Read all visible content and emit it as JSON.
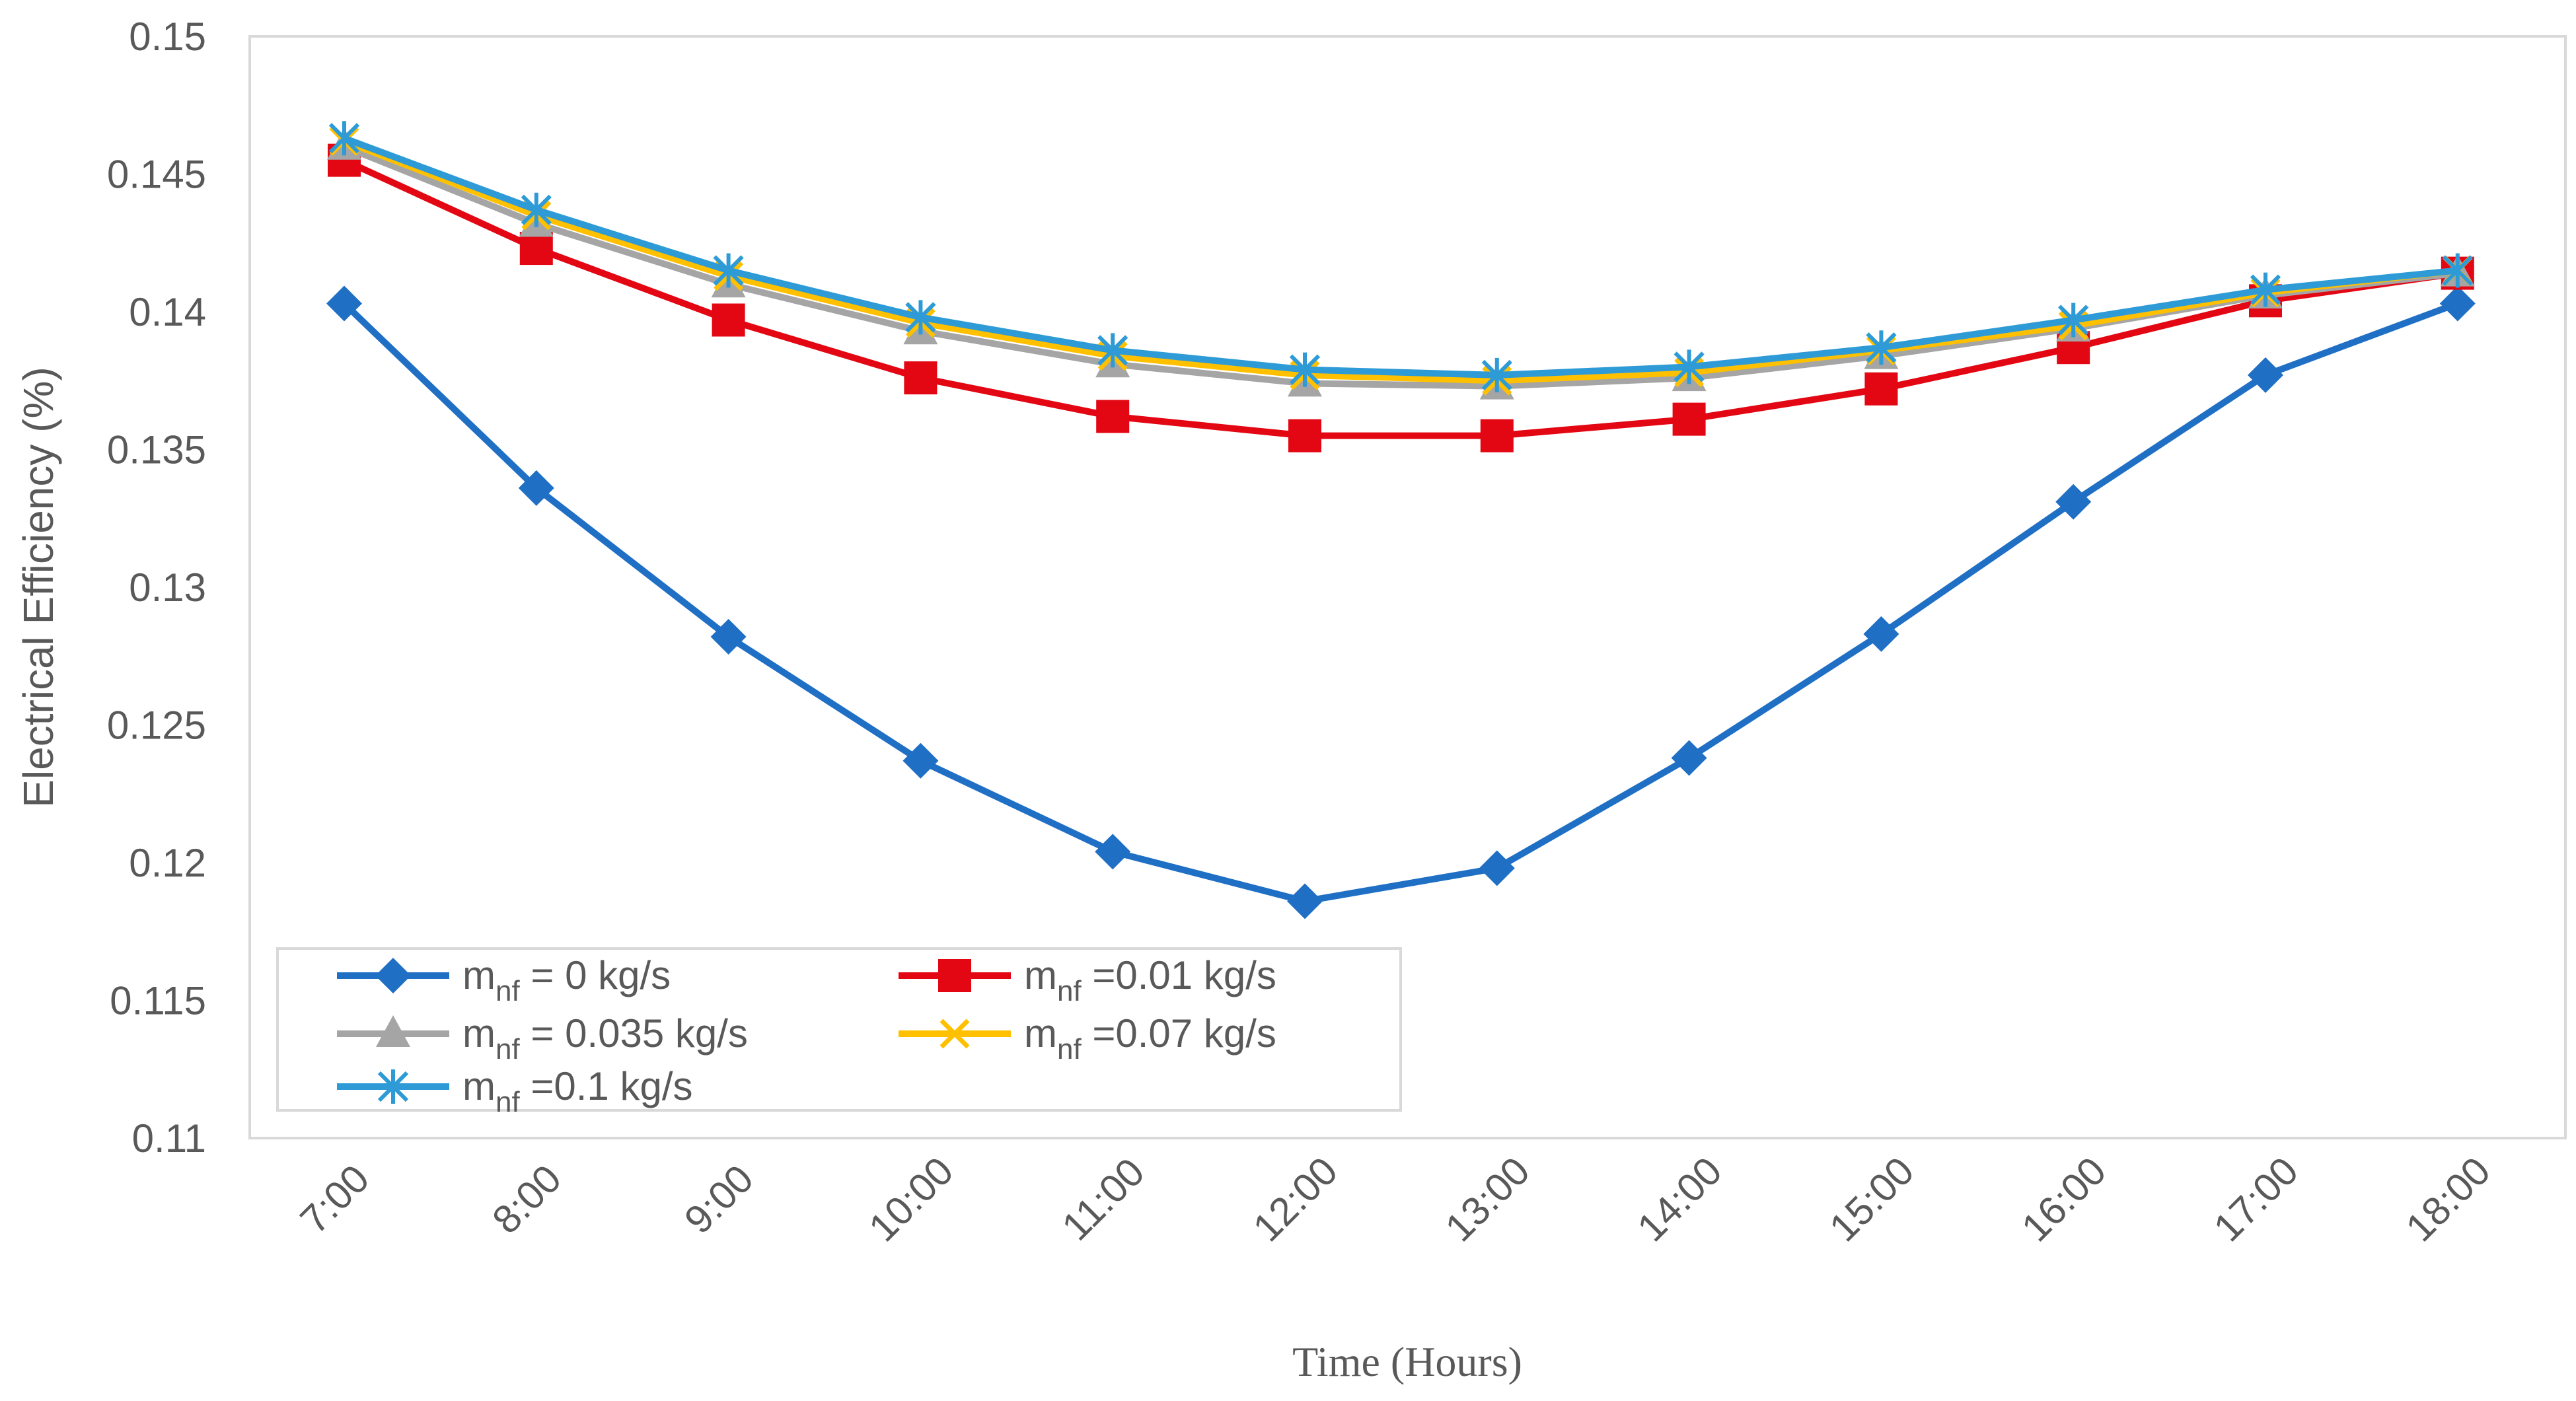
{
  "chart_data": {
    "type": "line",
    "title": "",
    "xlabel": "Time (Hours)",
    "ylabel": "Electrical Efficiency (%)",
    "ylim": [
      0.11,
      0.15
    ],
    "yticks": [
      "0.11",
      "0.115",
      "0.12",
      "0.125",
      "0.13",
      "0.135",
      "0.14",
      "0.145",
      "0.15"
    ],
    "categories": [
      "7:00",
      "8:00",
      "9:00",
      "10:00",
      "11:00",
      "12:00",
      "13:00",
      "14:00",
      "15:00",
      "16:00",
      "17:00",
      "18:00"
    ],
    "grid": false,
    "legend_position": "bottom-left",
    "series": [
      {
        "name_main": "m",
        "name_sub": "nf",
        "name_rest": " = 0  kg/s",
        "color": "#1F6FC5",
        "marker": "diamond",
        "values": [
          0.1403,
          0.1336,
          0.1282,
          0.1237,
          0.1204,
          0.1186,
          0.1198,
          0.1238,
          0.1283,
          0.1331,
          0.1377,
          0.1403
        ]
      },
      {
        "name_main": "m",
        "name_sub": "nf",
        "name_rest": " =0.01 kg/s",
        "color": "#E30613",
        "marker": "square",
        "values": [
          0.1455,
          0.1423,
          0.1397,
          0.1376,
          0.1362,
          0.1355,
          0.1355,
          0.1361,
          0.1372,
          0.1387,
          0.1404,
          0.1414
        ]
      },
      {
        "name_main": "m",
        "name_sub": "nf",
        "name_rest": " = 0.035 kg/s",
        "color": "#A5A5A5",
        "marker": "triangle",
        "values": [
          0.146,
          0.1432,
          0.141,
          0.1393,
          0.1381,
          0.1374,
          0.1373,
          0.1376,
          0.1384,
          0.1394,
          0.1406,
          0.1414
        ]
      },
      {
        "name_main": "m",
        "name_sub": "nf",
        "name_rest": " =0.07 kg/s",
        "color": "#FFC000",
        "marker": "x",
        "values": [
          0.1462,
          0.1435,
          0.1413,
          0.1396,
          0.1384,
          0.1377,
          0.1375,
          0.1378,
          0.1386,
          0.1395,
          0.1407,
          0.1415
        ]
      },
      {
        "name_main": "m",
        "name_sub": "nf",
        "name_rest": " =0.1 kg/s",
        "color": "#2E9BD6",
        "marker": "asterisk",
        "values": [
          0.1463,
          0.1437,
          0.1415,
          0.1398,
          0.1386,
          0.1379,
          0.1377,
          0.138,
          0.1387,
          0.1397,
          0.1408,
          0.1415
        ]
      }
    ]
  }
}
